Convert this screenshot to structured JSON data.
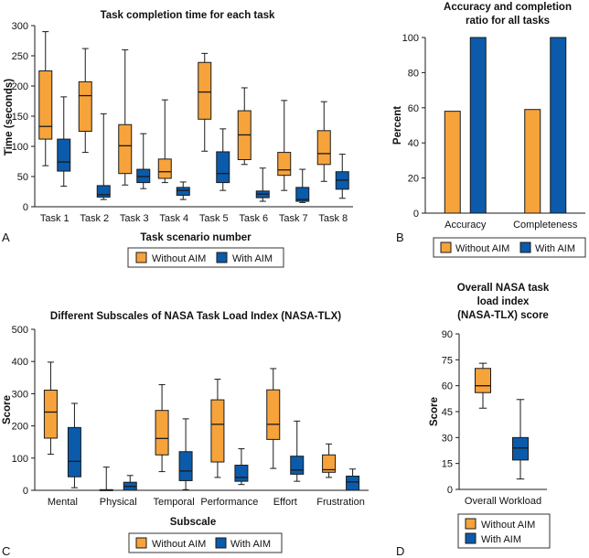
{
  "colors": {
    "without_aim": "#F6A33B",
    "with_aim": "#0B5BAA",
    "stroke": "#1a1a1a"
  },
  "legend": {
    "without_aim": "Without AIM",
    "with_aim": "With AIM"
  },
  "chart_data": [
    {
      "panel": "A",
      "type": "boxplot",
      "title": "Task completion time for each task",
      "xlabel": "Task scenario number",
      "ylabel": "Time (seconds)",
      "ylim": [
        0,
        300
      ],
      "yticks": [
        0,
        50,
        100,
        150,
        200,
        250,
        300
      ],
      "categories": [
        "Task 1",
        "Task 2",
        "Task 3",
        "Task 4",
        "Task 5",
        "Task 6",
        "Task 7",
        "Task 8"
      ],
      "series": [
        {
          "name": "Without AIM",
          "boxes": [
            {
              "min": 68,
              "q1": 112,
              "median": 133,
              "q3": 225,
              "max": 290
            },
            {
              "min": 90,
              "q1": 125,
              "median": 184,
              "q3": 207,
              "max": 262
            },
            {
              "min": 36,
              "q1": 55,
              "median": 101,
              "q3": 136,
              "max": 260
            },
            {
              "min": 40,
              "q1": 47,
              "median": 58,
              "q3": 79,
              "max": 177
            },
            {
              "min": 92,
              "q1": 145,
              "median": 190,
              "q3": 239,
              "max": 254
            },
            {
              "min": 70,
              "q1": 78,
              "median": 119,
              "q3": 159,
              "max": 197
            },
            {
              "min": 27,
              "q1": 52,
              "median": 61,
              "q3": 90,
              "max": 176
            },
            {
              "min": 42,
              "q1": 70,
              "median": 88,
              "q3": 126,
              "max": 174
            }
          ]
        },
        {
          "name": "With AIM",
          "boxes": [
            {
              "min": 34,
              "q1": 59,
              "median": 74,
              "q3": 112,
              "max": 182
            },
            {
              "min": 12,
              "q1": 16,
              "median": 20,
              "q3": 35,
              "max": 154
            },
            {
              "min": 30,
              "q1": 40,
              "median": 50,
              "q3": 62,
              "max": 121
            },
            {
              "min": 12,
              "q1": 19,
              "median": 27,
              "q3": 32,
              "max": 41
            },
            {
              "min": 27,
              "q1": 40,
              "median": 55,
              "q3": 91,
              "max": 129
            },
            {
              "min": 9,
              "q1": 15,
              "median": 21,
              "q3": 26,
              "max": 64
            },
            {
              "min": 7,
              "q1": 9,
              "median": 12,
              "q3": 32,
              "max": 62
            },
            {
              "min": 14,
              "q1": 29,
              "median": 44,
              "q3": 58,
              "max": 87
            }
          ]
        }
      ]
    },
    {
      "panel": "B",
      "type": "bar",
      "title_lines": [
        "Accuracy and completion",
        "ratio for all tasks"
      ],
      "ylabel": "Percent",
      "ylim": [
        0,
        100
      ],
      "yticks": [
        0,
        20,
        40,
        60,
        80,
        100
      ],
      "categories": [
        "Accuracy",
        "Completeness"
      ],
      "series": [
        {
          "name": "Without AIM",
          "values": [
            58,
            59
          ]
        },
        {
          "name": "With AIM",
          "values": [
            100,
            100
          ]
        }
      ]
    },
    {
      "panel": "C",
      "type": "boxplot",
      "title": "Different Subscales of NASA Task Load Index (NASA-TLX)",
      "xlabel": "Subscale",
      "ylabel": "Score",
      "ylim": [
        0,
        500
      ],
      "yticks": [
        0,
        100,
        200,
        300,
        400,
        500
      ],
      "categories": [
        "Mental",
        "Physical",
        "Temporal",
        "Performance",
        "Effort",
        "Frustration"
      ],
      "series": [
        {
          "name": "Without AIM",
          "boxes": [
            {
              "min": 112,
              "q1": 162,
              "median": 243,
              "q3": 311,
              "max": 398
            },
            {
              "min": 0,
              "q1": 0,
              "median": 0,
              "q3": 2,
              "max": 72
            },
            {
              "min": 58,
              "q1": 110,
              "median": 161,
              "q3": 248,
              "max": 328
            },
            {
              "min": 40,
              "q1": 88,
              "median": 205,
              "q3": 281,
              "max": 345
            },
            {
              "min": 68,
              "q1": 158,
              "median": 205,
              "q3": 312,
              "max": 378
            },
            {
              "min": 40,
              "q1": 56,
              "median": 64,
              "q3": 110,
              "max": 144
            }
          ]
        },
        {
          "name": "With AIM",
          "boxes": [
            {
              "min": 8,
              "q1": 42,
              "median": 90,
              "q3": 195,
              "max": 270
            },
            {
              "min": 0,
              "q1": 0,
              "median": 12,
              "q3": 25,
              "max": 46
            },
            {
              "min": 2,
              "q1": 30,
              "median": 60,
              "q3": 120,
              "max": 222
            },
            {
              "min": 18,
              "q1": 28,
              "median": 40,
              "q3": 78,
              "max": 129
            },
            {
              "min": 28,
              "q1": 50,
              "median": 63,
              "q3": 106,
              "max": 215
            },
            {
              "min": 0,
              "q1": 0,
              "median": 26,
              "q3": 44,
              "max": 66
            }
          ]
        }
      ]
    },
    {
      "panel": "D",
      "type": "boxplot",
      "title_lines": [
        "Overall NASA task",
        "load index",
        "(NASA-TLX) score"
      ],
      "ylabel": "Score",
      "ylim": [
        0,
        90
      ],
      "yticks": [
        0,
        15,
        30,
        45,
        60,
        75,
        90
      ],
      "categories": [
        "Overall Workload"
      ],
      "series": [
        {
          "name": "Without AIM",
          "boxes": [
            {
              "min": 47,
              "q1": 56,
              "median": 60,
              "q3": 70,
              "max": 73
            }
          ]
        },
        {
          "name": "With AIM",
          "boxes": [
            {
              "min": 6,
              "q1": 17,
              "median": 24,
              "q3": 30,
              "max": 52
            }
          ]
        }
      ]
    }
  ]
}
